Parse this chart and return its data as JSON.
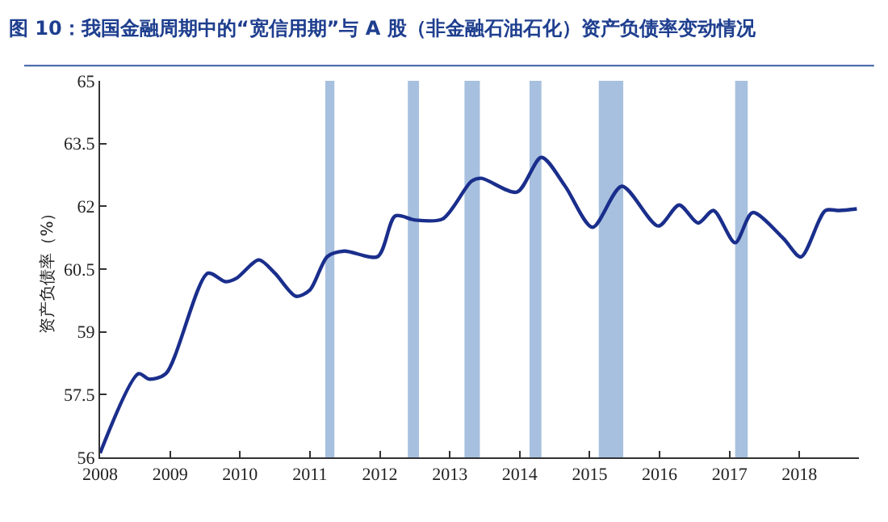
{
  "chart_data": {
    "type": "line",
    "title": "图 10：我国金融周期中的“宽信用期”与 A 股（非金融石油石化）资产负债率变动情况",
    "ylabel": "资产负债率（%）",
    "series": [
      {
        "color": "#1a2e8c",
        "x": [
          2008.0,
          2008.55,
          2008.7,
          2008.94,
          2009.54,
          2009.79,
          2009.95,
          2010.27,
          2010.5,
          2010.8,
          2011.0,
          2011.25,
          2011.49,
          2011.97,
          2012.22,
          2012.51,
          2012.9,
          2013.31,
          2013.45,
          2013.96,
          2014.31,
          2014.65,
          2015.04,
          2015.46,
          2015.98,
          2016.28,
          2016.55,
          2016.77,
          2017.08,
          2017.33,
          2017.77,
          2018.02,
          2018.37,
          2018.57,
          2018.82
        ],
        "values": [
          56.1,
          58.0,
          57.87,
          58.0,
          60.4,
          60.2,
          60.28,
          60.72,
          60.4,
          59.85,
          60.0,
          60.8,
          60.93,
          60.8,
          61.77,
          61.67,
          61.7,
          62.6,
          62.67,
          62.34,
          63.17,
          62.48,
          61.5,
          62.48,
          61.53,
          62.03,
          61.6,
          61.9,
          61.13,
          61.85,
          61.23,
          60.79,
          61.9,
          61.9,
          61.94
        ]
      }
    ],
    "xlim": [
      2008,
      2018.85
    ],
    "xticks": [
      2008,
      2009,
      2010,
      2011,
      2012,
      2013,
      2014,
      2015,
      2016,
      2017,
      2018
    ],
    "ylim": [
      56,
      65
    ],
    "yticks": [
      56,
      57.5,
      59,
      60.5,
      62,
      63.5,
      65
    ],
    "bands": [
      {
        "axis": "x",
        "from": 2011.22,
        "to": 2011.35,
        "color": "#a7c0df"
      },
      {
        "axis": "x",
        "from": 2012.4,
        "to": 2012.56,
        "color": "#a7c0df"
      },
      {
        "axis": "x",
        "from": 2013.21,
        "to": 2013.43,
        "color": "#a7c0df"
      },
      {
        "axis": "x",
        "from": 2014.14,
        "to": 2014.31,
        "color": "#a7c0df"
      },
      {
        "axis": "x",
        "from": 2015.13,
        "to": 2015.48,
        "color": "#a7c0df"
      },
      {
        "axis": "x",
        "from": 2017.08,
        "to": 2017.26,
        "color": "#a7c0df"
      }
    ],
    "marker": "none",
    "line_style": "solid"
  }
}
